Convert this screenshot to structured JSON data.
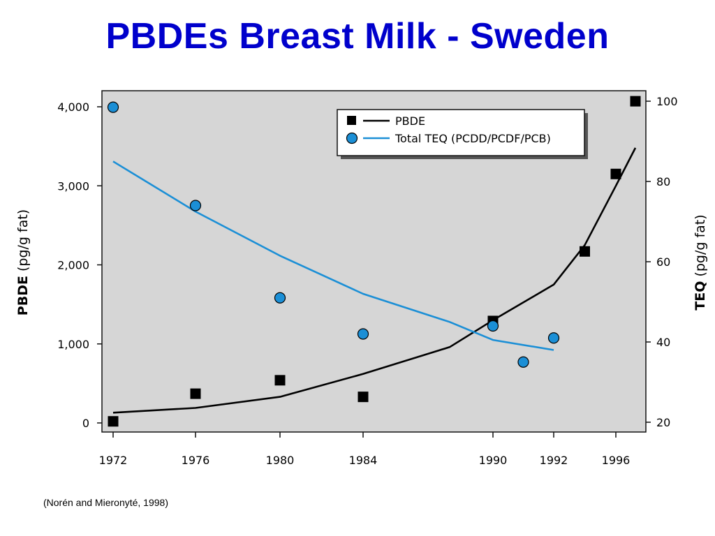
{
  "slide": {
    "title": "PBDEs Breast Milk - Sweden",
    "source": "(Norén and Mieronyté, 1998)"
  },
  "colors": {
    "title": "#0000cc",
    "plot_background": "#d6d6d6",
    "pbde": "#000000",
    "teq": "#1b8fd6"
  },
  "chart_data": {
    "type": "scatter",
    "xlabel": "",
    "x_ticks": [
      "1972",
      "1976",
      "1980",
      "1984",
      "1990",
      "1992",
      "1996"
    ],
    "y_left": {
      "label_bold": "PBDE",
      "label_rest": " (pg/g fat)",
      "ticks": [
        "0",
        "1,000",
        "2,000",
        "3,000",
        "4,000"
      ],
      "range": [
        0,
        4000
      ]
    },
    "y_right": {
      "label_bold": "TEQ",
      "label_rest": " (pg/g fat)",
      "ticks": [
        "20",
        "40",
        "60",
        "80",
        "100"
      ],
      "range": [
        20,
        100
      ]
    },
    "legend": {
      "position": "top-right",
      "entries": [
        "PBDE",
        "Total TEQ (PCDD/PCDF/PCB)"
      ]
    },
    "series": [
      {
        "name": "PBDE",
        "axis": "left",
        "marker": "square",
        "points": [
          [
            1972,
            20
          ],
          [
            1976,
            370
          ],
          [
            1980,
            540
          ],
          [
            1984,
            330
          ],
          [
            1990,
            1290
          ],
          [
            1994,
            2170
          ],
          [
            1996,
            3150
          ],
          [
            1997,
            4070
          ]
        ],
        "fit": [
          [
            1972,
            130
          ],
          [
            1976,
            190
          ],
          [
            1980,
            330
          ],
          [
            1984,
            620
          ],
          [
            1988,
            960
          ],
          [
            1990,
            1300
          ],
          [
            1992,
            1750
          ],
          [
            1994,
            2250
          ],
          [
            1996,
            3000
          ],
          [
            1997,
            3480
          ]
        ]
      },
      {
        "name": "Total TEQ (PCDD/PCDF/PCB)",
        "axis": "right",
        "marker": "circle",
        "points": [
          [
            1972,
            98.5
          ],
          [
            1976,
            74
          ],
          [
            1980,
            51
          ],
          [
            1984,
            42
          ],
          [
            1990,
            44
          ],
          [
            1991,
            35
          ],
          [
            1992,
            41
          ]
        ],
        "fit": [
          [
            1972,
            85
          ],
          [
            1976,
            72.5
          ],
          [
            1980,
            61.5
          ],
          [
            1984,
            52
          ],
          [
            1988,
            45
          ],
          [
            1990,
            40.5
          ],
          [
            1992,
            38
          ]
        ]
      }
    ]
  }
}
